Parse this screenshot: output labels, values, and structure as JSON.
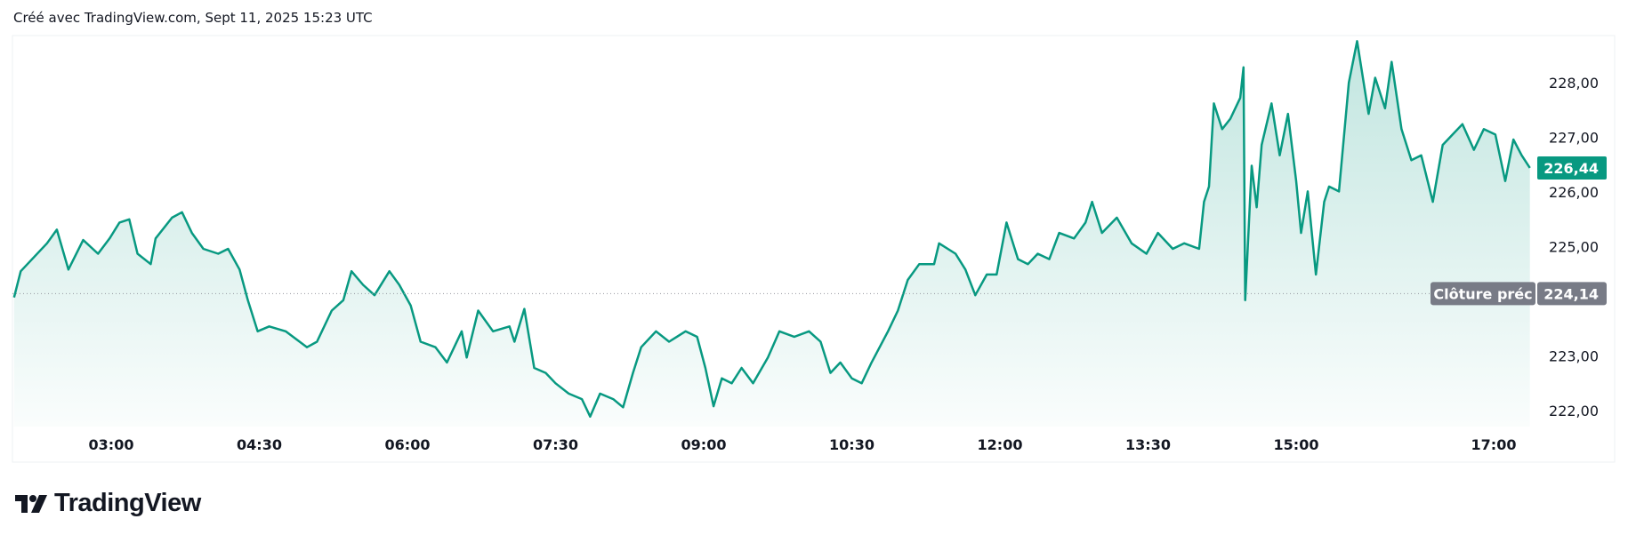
{
  "caption": "Créé avec TradingView.com, Sept 11, 2025 15:23 UTC",
  "brand": "TradingView",
  "colors": {
    "line": "#089981",
    "last_price_bg": "#089981",
    "prev_close_bg": "#787b86"
  },
  "chart_data": {
    "type": "area",
    "title": "",
    "xlabel": "",
    "ylabel": "",
    "x_unit": "minutes since 00:00",
    "xlim": [
      121,
      1060
    ],
    "ylim": [
      221.5,
      228.8
    ],
    "grid": false,
    "x_ticks": [
      {
        "t": 180,
        "label": "03:00"
      },
      {
        "t": 270,
        "label": "04:30"
      },
      {
        "t": 360,
        "label": "06:00"
      },
      {
        "t": 450,
        "label": "07:30"
      },
      {
        "t": 540,
        "label": "09:00"
      },
      {
        "t": 630,
        "label": "10:30"
      },
      {
        "t": 720,
        "label": "12:00"
      },
      {
        "t": 810,
        "label": "13:30"
      },
      {
        "t": 900,
        "label": "15:00"
      },
      {
        "t": 1020,
        "label": "17:00"
      }
    ],
    "y_ticks": [
      {
        "v": 228,
        "label": "228,00"
      },
      {
        "v": 227,
        "label": "227,00"
      },
      {
        "v": 226,
        "label": "226,00"
      },
      {
        "v": 225,
        "label": "225,00"
      },
      {
        "v": 223,
        "label": "223,00"
      },
      {
        "v": 222,
        "label": "222,00"
      }
    ],
    "last_price": {
      "value": 226.44,
      "label": "226,44"
    },
    "prev_close": {
      "value": 224.14,
      "label": "224,14",
      "name": "Clôture préc"
    },
    "x": [
      121,
      125,
      141,
      147,
      154,
      163,
      172,
      179,
      185,
      191,
      196,
      204,
      207,
      217,
      223,
      229,
      236,
      245,
      251,
      258,
      263,
      269,
      276,
      286,
      299,
      305,
      314,
      321,
      326,
      333,
      340,
      349,
      355,
      362,
      368,
      377,
      384,
      393,
      396,
      403,
      412,
      422,
      425,
      431,
      437,
      444,
      450,
      458,
      466,
      471,
      477,
      485,
      491,
      497,
      502,
      511,
      519,
      529,
      536,
      541,
      546,
      551,
      557,
      563,
      570,
      579,
      586,
      595,
      604,
      611,
      617,
      623,
      630,
      636,
      642,
      652,
      658,
      664,
      671,
      680,
      683,
      693,
      699,
      705,
      712,
      718,
      724,
      731,
      737,
      743,
      750,
      756,
      765,
      772,
      776,
      782,
      791,
      800,
      809,
      816,
      825,
      832,
      841,
      844,
      847,
      850,
      855,
      860,
      866,
      868,
      869,
      873,
      876,
      879,
      885,
      890,
      895,
      900,
      903,
      907,
      912,
      917,
      920,
      926,
      932,
      937,
      944,
      948,
      954,
      958,
      964,
      970,
      976,
      983,
      989,
      995,
      1001,
      1008,
      1014,
      1021,
      1027,
      1032,
      1037,
      1042
    ],
    "y": [
      224.07,
      224.55,
      225.06,
      225.31,
      224.58,
      225.12,
      224.87,
      225.15,
      225.44,
      225.5,
      224.87,
      224.68,
      225.15,
      225.53,
      225.63,
      225.25,
      224.96,
      224.87,
      224.96,
      224.58,
      224.02,
      223.45,
      223.54,
      223.45,
      223.16,
      223.26,
      223.83,
      224.02,
      224.55,
      224.3,
      224.11,
      224.55,
      224.3,
      223.92,
      223.26,
      223.16,
      222.88,
      223.45,
      222.97,
      223.83,
      223.45,
      223.54,
      223.26,
      223.86,
      222.78,
      222.69,
      222.5,
      222.31,
      222.21,
      221.89,
      222.31,
      222.21,
      222.06,
      222.69,
      223.16,
      223.45,
      223.26,
      223.45,
      223.35,
      222.78,
      222.08,
      222.59,
      222.5,
      222.78,
      222.5,
      222.97,
      223.45,
      223.35,
      223.45,
      223.26,
      222.69,
      222.88,
      222.59,
      222.5,
      222.88,
      223.45,
      223.83,
      224.39,
      224.68,
      224.68,
      225.06,
      224.87,
      224.58,
      224.11,
      224.49,
      224.49,
      225.44,
      224.77,
      224.68,
      224.87,
      224.77,
      225.25,
      225.15,
      225.44,
      225.82,
      225.25,
      225.53,
      225.06,
      224.87,
      225.25,
      224.96,
      225.06,
      224.96,
      225.82,
      226.1,
      227.62,
      227.15,
      227.34,
      227.72,
      228.28,
      224.02,
      226.48,
      225.72,
      226.86,
      227.62,
      226.67,
      227.43,
      226.2,
      225.25,
      226.01,
      224.49,
      225.82,
      226.1,
      226.01,
      228.0,
      228.76,
      227.43,
      228.09,
      227.53,
      228.38,
      227.15,
      226.58,
      226.67,
      225.82,
      226.86,
      227.05,
      227.24,
      226.77,
      227.15,
      227.05,
      226.2,
      226.96,
      226.67,
      226.44
    ]
  }
}
